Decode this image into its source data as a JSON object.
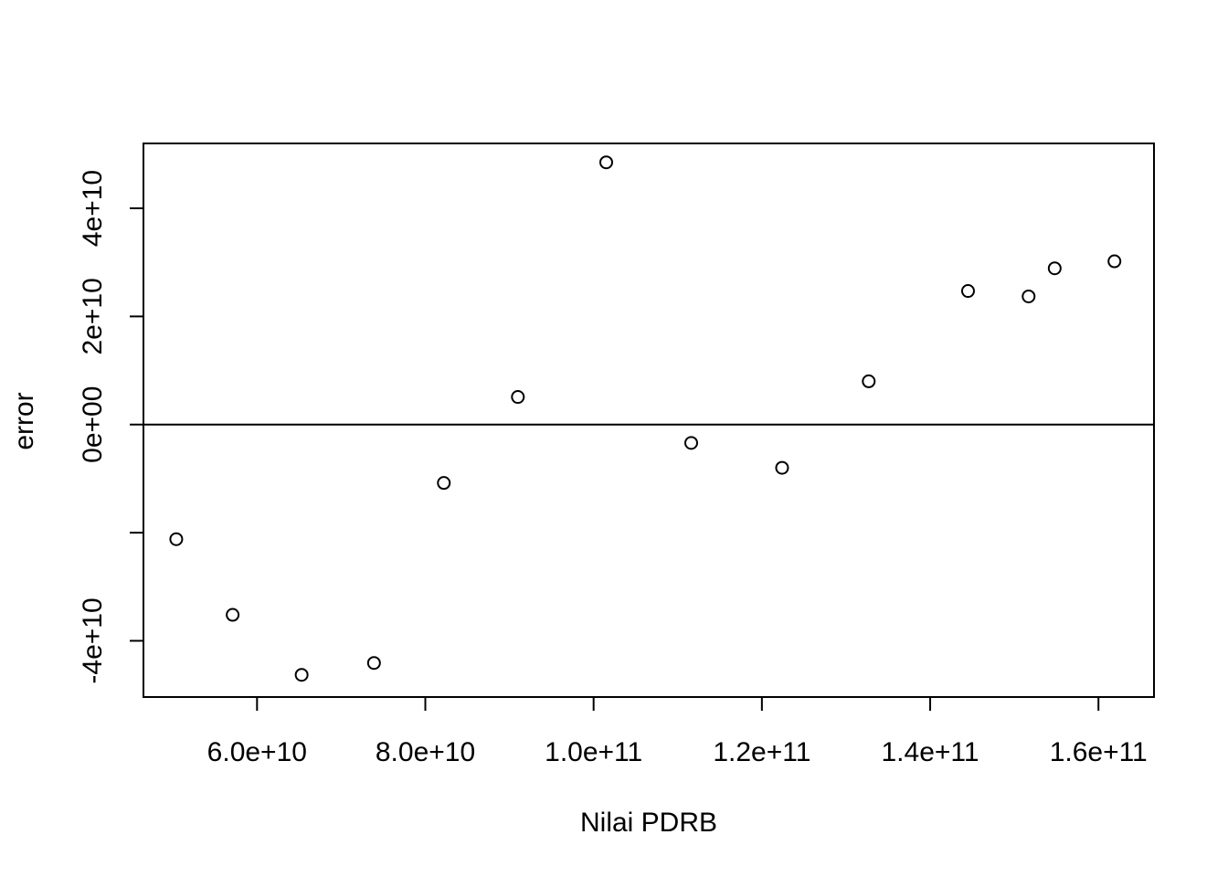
{
  "chart_data": {
    "type": "scatter",
    "title": "",
    "xlabel": "Nilai PDRB",
    "ylabel": "error",
    "xlim": [
      46500000000,
      166600000000
    ],
    "ylim": [
      -50400000000,
      52000000000
    ],
    "x_ticks": [
      {
        "value": 60000000000,
        "label": "6.0e+10"
      },
      {
        "value": 80000000000,
        "label": "8.0e+10"
      },
      {
        "value": 100000000000,
        "label": "1.0e+11"
      },
      {
        "value": 120000000000,
        "label": "1.2e+11"
      },
      {
        "value": 140000000000,
        "label": "1.4e+11"
      },
      {
        "value": 160000000000,
        "label": "1.6e+11"
      }
    ],
    "y_ticks": [
      {
        "value": -40000000000,
        "label": "-4e+10"
      },
      {
        "value": -20000000000,
        "label": ""
      },
      {
        "value": 0,
        "label": "0e+00"
      },
      {
        "value": 20000000000,
        "label": "2e+10"
      },
      {
        "value": 40000000000,
        "label": "4e+10"
      }
    ],
    "reference_line": {
      "y": 0
    },
    "grid": false,
    "points": [
      {
        "x": 50400000000,
        "y": -21200000000
      },
      {
        "x": 57100000000,
        "y": -35200000000
      },
      {
        "x": 65300000000,
        "y": -46300000000
      },
      {
        "x": 73900000000,
        "y": -44100000000
      },
      {
        "x": 82200000000,
        "y": -10800000000
      },
      {
        "x": 91000000000,
        "y": 5100000000
      },
      {
        "x": 101500000000,
        "y": 48500000000
      },
      {
        "x": 111600000000,
        "y": -3400000000
      },
      {
        "x": 122400000000,
        "y": -8000000000
      },
      {
        "x": 132700000000,
        "y": 8000000000
      },
      {
        "x": 144500000000,
        "y": 24700000000
      },
      {
        "x": 151700000000,
        "y": 23700000000
      },
      {
        "x": 154800000000,
        "y": 28900000000
      },
      {
        "x": 161900000000,
        "y": 30200000000
      }
    ]
  }
}
